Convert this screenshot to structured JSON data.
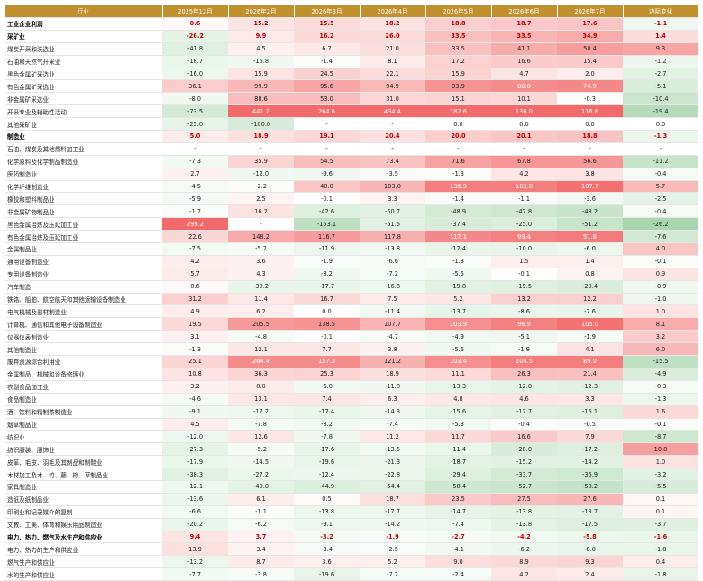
{
  "table": {
    "header": [
      "行业",
      "2025年12月",
      "2026年2月",
      "2026年3月",
      "2026年4月",
      "2026年5月",
      "2026年6月",
      "2026年7月",
      "边际变化"
    ],
    "rows": [
      {
        "name": "工业企业利润",
        "cells": [
          "0.6",
          "15.2",
          "15.5",
          "18.2",
          "18.8",
          "18.7",
          "17.6",
          "-1.1"
        ]
      },
      {
        "name": "采矿业",
        "cells": [
          "-26.2",
          "9.9",
          "16.2",
          "26.0",
          "33.5",
          "33.5",
          "34.9",
          "1.4"
        ]
      },
      {
        "name": "煤炭开采和洗选业",
        "cells": [
          "-41.8",
          "4.5",
          "6.7",
          "21.0",
          "33.5",
          "41.1",
          "50.4",
          "9.3"
        ]
      },
      {
        "name": "石油和天然气开采业",
        "cells": [
          "-18.7",
          "-16.8",
          "-1.4",
          "8.1",
          "17.2",
          "16.6",
          "15.4",
          "-1.2"
        ]
      },
      {
        "name": "黑色金属矿采选业",
        "cells": [
          "-16.0",
          "15.9",
          "24.5",
          "22.1",
          "15.9",
          "4.7",
          "2.0",
          "-2.7"
        ]
      },
      {
        "name": "有色金属矿采选业",
        "cells": [
          "36.1",
          "99.9",
          "95.6",
          "94.9",
          "93.9",
          "80.0",
          "74.9",
          "-5.1"
        ]
      },
      {
        "name": "非金属矿采选业",
        "cells": [
          "-8.0",
          "88.6",
          "53.0",
          "31.0",
          "15.1",
          "10.1",
          "-0.3",
          "-10.4"
        ]
      },
      {
        "name": "开采专业及辅助性活动",
        "cells": [
          "-73.5",
          "441.2",
          "264.6",
          "434.4",
          "182.6",
          "136.0",
          "116.6",
          "-19.4"
        ]
      },
      {
        "name": "其他采矿业",
        "cells": [
          "-25.0",
          "-100.0",
          "-",
          "-",
          "0.0",
          "0.0",
          "0.0",
          "0.0"
        ]
      },
      {
        "name": "制造业",
        "cells": [
          "5.0",
          "18.9",
          "19.1",
          "20.4",
          "20.0",
          "20.1",
          "18.8",
          "-1.3"
        ]
      },
      {
        "name": "石油、煤炭及其他燃料加工业",
        "cells": [
          "-",
          "-",
          "-",
          "-",
          "-",
          "-",
          "-",
          "-"
        ]
      },
      {
        "name": "化学原料及化学制品制造业",
        "cells": [
          "-7.3",
          "35.9",
          "54.5",
          "73.4",
          "71.6",
          "67.8",
          "56.6",
          "-11.2"
        ]
      },
      {
        "name": "医药制造业",
        "cells": [
          "2.7",
          "-12.0",
          "-9.6",
          "-3.5",
          "-1.3",
          "4.2",
          "3.8",
          "-0.4"
        ]
      },
      {
        "name": "化学纤维制造业",
        "cells": [
          "-4.5",
          "-2.2",
          "40.0",
          "103.0",
          "136.9",
          "102.0",
          "107.7",
          "5.7"
        ]
      },
      {
        "name": "橡胶和塑料制品业",
        "cells": [
          "-5.9",
          "2.5",
          "-0.1",
          "3.3",
          "-1.4",
          "-1.1",
          "-3.6",
          "-2.5"
        ]
      },
      {
        "name": "非金属矿物制品业",
        "cells": [
          "-1.7",
          "16.2",
          "-42.6",
          "-50.7",
          "-48.9",
          "-47.8",
          "-48.2",
          "-0.4"
        ]
      },
      {
        "name": "黑色金属冶炼及压延加工业",
        "cells": [
          "299.2",
          "-",
          "-153.1",
          "-51.5",
          "-37.4",
          "-25.0",
          "-51.2",
          "-26.2"
        ]
      },
      {
        "name": "有色金属冶炼及压延加工业",
        "cells": [
          "22.6",
          "148.2",
          "116.7",
          "117.8",
          "117.1",
          "99.4",
          "91.8",
          "-7.6"
        ]
      },
      {
        "name": "金属制品业",
        "cells": [
          "-7.5",
          "-5.2",
          "-11.9",
          "-13.8",
          "-12.4",
          "-10.0",
          "-6.0",
          "4.0"
        ]
      },
      {
        "name": "通用设备制造业",
        "cells": [
          "4.2",
          "3.6",
          "-1.9",
          "-6.6",
          "-1.3",
          "1.5",
          "1.4",
          "-0.1"
        ]
      },
      {
        "name": "专用设备制造业",
        "cells": [
          "5.7",
          "4.3",
          "-8.2",
          "-7.2",
          "-5.5",
          "-0.1",
          "0.8",
          "0.9"
        ]
      },
      {
        "name": "汽车制造",
        "cells": [
          "0.6",
          "-30.2",
          "-17.7",
          "-16.8",
          "-19.8",
          "-19.5",
          "-20.4",
          "-0.9"
        ]
      },
      {
        "name": "铁路、船舶、航空航天和其他运输设备制造业",
        "cells": [
          "31.2",
          "11.4",
          "16.7",
          "7.5",
          "5.2",
          "13.2",
          "12.2",
          "-1.0"
        ]
      },
      {
        "name": "电气机械及器材制造业",
        "cells": [
          "4.9",
          "6.2",
          "0.0",
          "-11.4",
          "-13.7",
          "-8.6",
          "-7.6",
          "1.0"
        ]
      },
      {
        "name": "计算机、通信和其他电子设备制造业",
        "cells": [
          "19.5",
          "205.5",
          "138.5",
          "107.7",
          "103.9",
          "96.9",
          "105.0",
          "8.1"
        ]
      },
      {
        "name": "仪器仪表制造业",
        "cells": [
          "3.1",
          "-4.8",
          "-0.1",
          "-4.7",
          "-4.9",
          "-5.1",
          "-1.9",
          "3.2"
        ]
      },
      {
        "name": "其他制造业",
        "cells": [
          "-1.3",
          "12.1",
          "7.7",
          "3.8",
          "-5.6",
          "-1.9",
          "4.1",
          "6.0"
        ]
      },
      {
        "name": "废弃资源综合利用业",
        "cells": [
          "25.1",
          "264.4",
          "157.3",
          "121.2",
          "103.4",
          "104.5",
          "89.0",
          "-15.5"
        ]
      },
      {
        "name": "金属制品、机械和设备修理业",
        "cells": [
          "10.8",
          "36.3",
          "25.3",
          "18.9",
          "11.1",
          "26.3",
          "21.4",
          "-4.9"
        ]
      },
      {
        "name": "农副食品加工业",
        "cells": [
          "3.2",
          "8.0",
          "-6.0",
          "-11.8",
          "-13.3",
          "-12.0",
          "-12.3",
          "-0.3"
        ]
      },
      {
        "name": "食品制造业",
        "cells": [
          "-4.6",
          "13.1",
          "7.4",
          "6.3",
          "4.8",
          "4.6",
          "3.3",
          "-1.3"
        ]
      },
      {
        "name": "酒、饮料和精制茶制造业",
        "cells": [
          "-9.1",
          "-17.2",
          "-17.4",
          "-14.3",
          "-15.6",
          "-17.7",
          "-16.1",
          "1.6"
        ]
      },
      {
        "name": "烟草制品业",
        "cells": [
          "4.5",
          "-7.8",
          "-8.2",
          "-7.4",
          "-5.3",
          "-0.4",
          "-0.5",
          "-0.1"
        ]
      },
      {
        "name": "纺织业",
        "cells": [
          "-12.0",
          "12.6",
          "-7.8",
          "11.2",
          "11.7",
          "16.6",
          "7.9",
          "-8.7"
        ]
      },
      {
        "name": "纺织服装、服饰业",
        "cells": [
          "-27.3",
          "-5.2",
          "-17.6",
          "-13.5",
          "-11.4",
          "-28.0",
          "-17.2",
          "10.8"
        ]
      },
      {
        "name": "皮革、毛皮、羽毛及其制品和制鞋业",
        "cells": [
          "-17.9",
          "-14.5",
          "-19.6",
          "-21.3",
          "-18.7",
          "-15.2",
          "-14.2",
          "1.0"
        ]
      },
      {
        "name": "木材加工及木、竹、藤、棕、草制品业",
        "cells": [
          "-38.3",
          "-27.2",
          "-12.4",
          "-22.8",
          "-29.4",
          "-33.7",
          "-36.9",
          "-3.2"
        ]
      },
      {
        "name": "家具制造业",
        "cells": [
          "-12.1",
          "-40.0",
          "-44.9",
          "-54.4",
          "-58.4",
          "-52.7",
          "-58.2",
          "-5.5"
        ]
      },
      {
        "name": "造纸及纸制品业",
        "cells": [
          "-13.6",
          "6.1",
          "0.5",
          "18.7",
          "23.5",
          "27.5",
          "27.6",
          "0.1"
        ]
      },
      {
        "name": "印刷业和记录媒介的复制",
        "cells": [
          "-6.6",
          "-1.1",
          "-13.8",
          "-17.7",
          "-14.7",
          "-13.8",
          "-13.7",
          "0.1"
        ]
      },
      {
        "name": "文教、工美、体育和娱乐用品制造业",
        "cells": [
          "-20.2",
          "-6.2",
          "-9.1",
          "-14.2",
          "-7.4",
          "-13.8",
          "-17.5",
          "-3.7"
        ]
      },
      {
        "name": "电力、热力、燃气及水生产和供应业",
        "cells": [
          "9.4",
          "3.7",
          "-3.2",
          "-1.9",
          "-2.7",
          "-4.2",
          "-5.8",
          "-1.6"
        ]
      },
      {
        "name": "电力、热力的生产和供应业",
        "cells": [
          "13.9",
          "3.4",
          "-3.4",
          "-2.5",
          "-4.1",
          "-6.2",
          "-8.0",
          "-1.8"
        ]
      },
      {
        "name": "燃气生产和供应业",
        "cells": [
          "-13.2",
          "8.7",
          "3.6",
          "5.2",
          "9.0",
          "8.9",
          "9.3",
          "0.4"
        ]
      },
      {
        "name": "水的生产和供应业",
        "cells": [
          "-7.7",
          "-3.8",
          "-19.6",
          "-7.2",
          "-2.4",
          "4.2",
          "2.4",
          "-1.8"
        ]
      }
    ]
  }
}
